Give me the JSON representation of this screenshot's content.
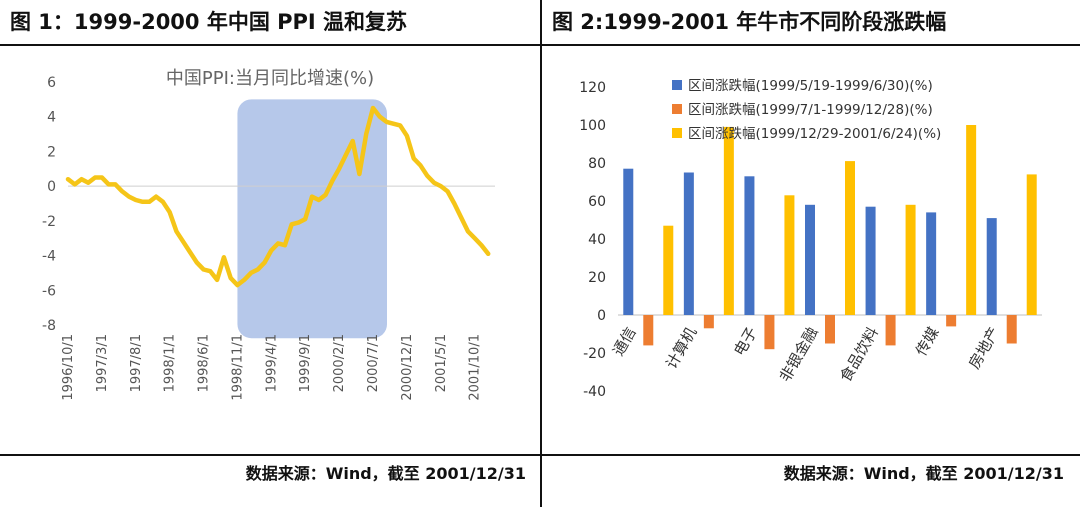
{
  "left": {
    "title": "图 1：1999-2000 年中国 PPI 温和复苏",
    "source": "数据来源：Wind，截至 2001/12/31"
  },
  "right": {
    "title": "图 2:1999-2001 年牛市不同阶段涨跌幅",
    "source": "数据来源：Wind，截至 2001/12/31"
  },
  "colors": {
    "line": "#F5C518",
    "shade": "#A9BEE6",
    "s1": "#4472C4",
    "s2": "#ED7D31",
    "s3": "#FFC000"
  },
  "chart_data": [
    {
      "type": "line",
      "title": "中国PPI:当月同比增速(%)",
      "ylim": [
        -8,
        6
      ],
      "yticks": [
        6,
        4,
        2,
        0,
        -2,
        -4,
        -6,
        -8
      ],
      "xlim": [
        "1996/10/1",
        "2002/1/1"
      ],
      "xticks": [
        "1996/10/1",
        "1997/3/1",
        "1997/8/1",
        "1998/1/1",
        "1998/6/1",
        "1998/11/1",
        "1999/4/1",
        "1999/9/1",
        "2000/2/1",
        "2000/7/1",
        "2000/12/1",
        "2001/5/1",
        "2001/10/1"
      ],
      "highlight_range": [
        "1998/11/1",
        "2000/7/1"
      ],
      "series": [
        {
          "name": "中国PPI:当月同比增速",
          "dates": [
            "1996/10",
            "1996/11",
            "1996/12",
            "1997/1",
            "1997/2",
            "1997/3",
            "1997/4",
            "1997/5",
            "1997/6",
            "1997/7",
            "1997/8",
            "1997/9",
            "1997/10",
            "1997/11",
            "1997/12",
            "1998/1",
            "1998/2",
            "1998/3",
            "1998/4",
            "1998/5",
            "1998/6",
            "1998/7",
            "1998/8",
            "1998/9",
            "1998/10",
            "1998/11",
            "1998/12",
            "1999/1",
            "1999/2",
            "1999/3",
            "1999/4",
            "1999/5",
            "1999/6",
            "1999/7",
            "1999/8",
            "1999/9",
            "1999/10",
            "1999/11",
            "1999/12",
            "2000/1",
            "2000/2",
            "2000/3",
            "2000/4",
            "2000/5",
            "2000/6",
            "2000/7",
            "2000/8",
            "2000/9",
            "2000/10",
            "2000/11",
            "2000/12",
            "2001/1",
            "2001/2",
            "2001/3",
            "2001/4",
            "2001/5",
            "2001/6",
            "2001/7",
            "2001/8",
            "2001/9",
            "2001/10",
            "2001/11",
            "2001/12"
          ],
          "values": [
            0.4,
            0.1,
            0.4,
            0.2,
            0.5,
            0.5,
            0.1,
            0.1,
            -0.3,
            -0.6,
            -0.8,
            -0.9,
            -0.9,
            -0.6,
            -0.9,
            -1.5,
            -2.6,
            -3.2,
            -3.8,
            -4.4,
            -4.8,
            -4.9,
            -5.4,
            -4.1,
            -5.3,
            -5.7,
            -5.4,
            -5.0,
            -4.8,
            -4.4,
            -3.7,
            -3.3,
            -3.4,
            -2.2,
            -2.1,
            -1.9,
            -0.6,
            -0.8,
            -0.5,
            0.3,
            1.0,
            1.8,
            2.6,
            0.7,
            3.0,
            4.5,
            4.0,
            3.7,
            3.6,
            3.5,
            2.9,
            1.6,
            1.2,
            0.6,
            0.2,
            0.0,
            -0.3,
            -1.0,
            -1.8,
            -2.6,
            -3.0,
            -3.4,
            -3.9
          ]
        }
      ]
    },
    {
      "type": "bar",
      "ylim": [
        -40,
        120
      ],
      "yticks": [
        120,
        100,
        80,
        60,
        40,
        20,
        0,
        -20,
        -40
      ],
      "categories": [
        "通信",
        "计算机",
        "电子",
        "非银金融",
        "食品饮料",
        "传媒",
        "房地产"
      ],
      "series": [
        {
          "name": "区间涨跌幅(1999/5/19-1999/6/30)(%)",
          "values": [
            77,
            75,
            73,
            58,
            57,
            54,
            51
          ]
        },
        {
          "name": "区间涨跌幅(1999/7/1-1999/12/28)(%)",
          "values": [
            -16,
            -7,
            -18,
            -15,
            -16,
            -6,
            -15
          ]
        },
        {
          "name": "区间涨跌幅(1999/12/29-2001/6/24)(%)",
          "values": [
            47,
            99,
            63,
            81,
            58,
            100,
            74
          ]
        }
      ]
    }
  ]
}
